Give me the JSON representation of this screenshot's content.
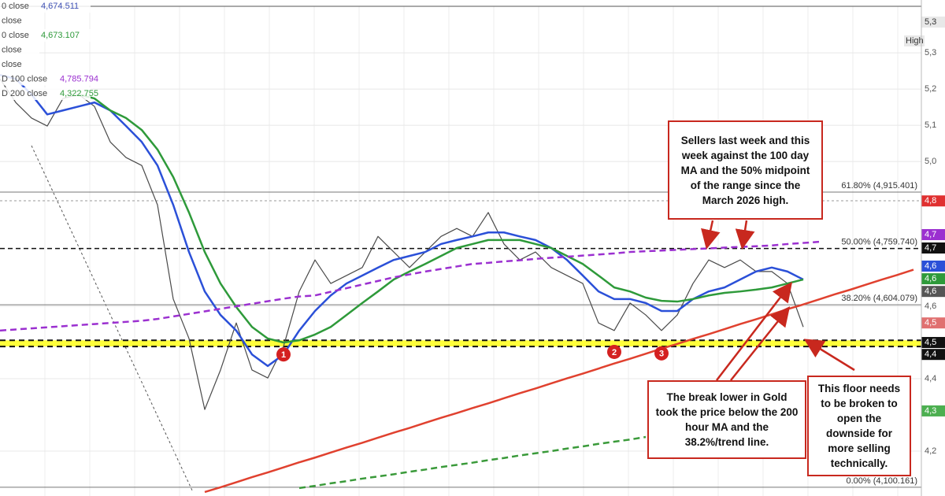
{
  "chart_data": {
    "type": "line",
    "ylim": [
      4076,
      5446
    ],
    "yticks": [
      {
        "value": 4200,
        "label": "4,2"
      },
      {
        "value": 4400,
        "label": "4,4"
      },
      {
        "value": 4600,
        "label": "4,6"
      },
      {
        "value": 5000,
        "label": "5,0"
      },
      {
        "value": 5100,
        "label": "5,1"
      },
      {
        "value": 5200,
        "label": "5,2"
      },
      {
        "value": 5300,
        "label": "5,3"
      }
    ],
    "grid": true,
    "legend": [
      {
        "label": "0 close",
        "readout": {
          "value": 4674.511,
          "label": "4,674.511"
        },
        "color": "#3f51b5"
      },
      {
        "label": "close"
      },
      {
        "label": "0 close",
        "readout": {
          "value": 4673.107,
          "label": "4,673.107"
        },
        "color": "#2e9a3a"
      },
      {
        "label": "close"
      },
      {
        "label": "close"
      },
      {
        "label": "D 100 close",
        "readout": {
          "value": 4785.794,
          "label": "4,785.794"
        },
        "color": "#9b30d0"
      },
      {
        "label": "D 200 close",
        "readout": {
          "value": 4322.755,
          "label": "4,322.755"
        },
        "color": "#2e9a3a"
      }
    ],
    "series": [
      {
        "color": "#4a4a4a",
        "values": [
          5228,
          5163,
          5120,
          5098,
          5174,
          5185,
          5152,
          5054,
          5011,
          4989,
          4880,
          4620,
          4511,
          4315,
          4424,
          4554,
          4424,
          4402,
          4489,
          4641,
          4728,
          4663,
          4685,
          4707,
          4793,
          4750,
          4707,
          4750,
          4793,
          4815,
          4793,
          4859,
          4772,
          4728,
          4750,
          4707,
          4685,
          4663,
          4554,
          4533,
          4609,
          4576,
          4533,
          4576,
          4663,
          4728,
          4707,
          4728,
          4696,
          4696,
          4663,
          4543,
          null,
          null,
          null,
          null,
          null,
          null,
          null
        ]
      },
      {
        "color": "#2b50d8",
        "values": [
          5239,
          5228,
          5185,
          5130,
          5141,
          5152,
          5163,
          5141,
          5098,
          5054,
          4989,
          4880,
          4750,
          4641,
          4576,
          4533,
          4467,
          4435,
          4467,
          4533,
          4587,
          4630,
          4663,
          4685,
          4707,
          4728,
          4739,
          4750,
          4772,
          4783,
          4793,
          4804,
          4804,
          4793,
          4783,
          4761,
          4728,
          4685,
          4641,
          4620,
          4620,
          4609,
          4587,
          4587,
          4620,
          4641,
          4652,
          4674,
          4696,
          4707,
          4696,
          4674,
          null,
          null,
          null,
          null,
          null,
          null,
          null
        ]
      },
      {
        "color": "#2e9a3a",
        "values": [
          null,
          null,
          null,
          null,
          null,
          5185,
          5174,
          5141,
          5120,
          5087,
          5033,
          4957,
          4859,
          4750,
          4663,
          4598,
          4543,
          4511,
          4500,
          4506,
          4522,
          4543,
          4576,
          4609,
          4641,
          4674,
          4696,
          4717,
          4739,
          4761,
          4772,
          4783,
          4783,
          4783,
          4772,
          4761,
          4739,
          4717,
          4685,
          4652,
          4641,
          4624,
          4615,
          4613,
          4620,
          4630,
          4637,
          4641,
          4646,
          4652,
          4663,
          4674,
          null,
          null,
          null,
          null,
          null,
          null,
          null
        ]
      },
      {
        "color": "#9b30d0",
        "dash": true,
        "values": [
          4533,
          4536,
          4539,
          4542,
          4545,
          4548,
          4551,
          4554,
          4557,
          4560,
          4565,
          4572,
          4579,
          4586,
          4593,
          4600,
          4607,
          4614,
          4621,
          4627,
          4630,
          4640,
          4650,
          4660,
          4670,
          4680,
          4688,
          4696,
          4703,
          4710,
          4717,
          4720,
          4724,
          4727,
          4731,
          4734,
          4737,
          4740,
          4743,
          4746,
          4750,
          4752,
          4754,
          4756,
          4758,
          4760,
          4762,
          4764,
          4766,
          4768,
          4772,
          4775,
          4778,
          null,
          null,
          null,
          null,
          null,
          null
        ]
      },
      {
        "color": "#3a9a3a",
        "dash": true,
        "values": [
          null,
          null,
          null,
          null,
          null,
          null,
          null,
          null,
          null,
          null,
          null,
          null,
          null,
          null,
          null,
          null,
          null,
          null,
          null,
          4098,
          4104,
          4111,
          4117,
          4124,
          4130,
          4136,
          4143,
          4149,
          4156,
          4162,
          4168,
          4175,
          4181,
          4188,
          4194,
          4200,
          4207,
          4213,
          4220,
          4226,
          4232,
          4239,
          null,
          null,
          null,
          null,
          null,
          null,
          null,
          null,
          null,
          null,
          null,
          null,
          null,
          null,
          null,
          null,
          null
        ]
      },
      {
        "color": "#e0412f",
        "values": [
          null,
          null,
          null,
          null,
          null,
          null,
          null,
          null,
          null,
          null,
          null,
          null,
          null,
          4087,
          4100,
          4114,
          4128,
          4141,
          4155,
          4169,
          4182,
          4196,
          4210,
          4223,
          4237,
          4251,
          4264,
          4278,
          4292,
          4305,
          4319,
          4332,
          4346,
          4360,
          4373,
          4387,
          4401,
          4414,
          4428,
          4442,
          4455,
          4469,
          4483,
          4496,
          4510,
          4523,
          4537,
          4551,
          4564,
          4578,
          4592,
          4605,
          4619,
          4633,
          4646,
          4660,
          4674,
          4687,
          4701
        ]
      }
    ],
    "levels": [
      {
        "value": 4915.401,
        "label": "61.80% (4,915.401)"
      },
      {
        "value": 4759.74,
        "label": "50.00% (4,759.740)",
        "dash": true
      },
      {
        "value": 4604.079,
        "label": "38.20% (4,604.079)"
      },
      {
        "value": 4100.161,
        "label": "0.00% (4,100.161)"
      }
    ],
    "support_band": [
      4489,
      4506
    ],
    "markers": [
      {
        "label": "1",
        "index": 18,
        "value": 4467
      },
      {
        "label": "2",
        "index": 39,
        "value": 4474
      },
      {
        "label": "3",
        "index": 42,
        "value": 4470
      }
    ],
    "price_tags": [
      {
        "value": 4891,
        "label": "4,8",
        "color": "#e03030"
      },
      {
        "value": 4798,
        "label": "4,7",
        "color": "#9b30d0"
      },
      {
        "value": 4761,
        "label": "4,7",
        "color": "#111111"
      },
      {
        "value": 4711,
        "label": "4,6",
        "color": "#2b50d8"
      },
      {
        "value": 4676,
        "label": "4,6",
        "color": "#2e9a3a"
      },
      {
        "value": 4641,
        "label": "4,6",
        "color": "#555555"
      },
      {
        "value": 4554,
        "label": "4,5",
        "color": "#e07070"
      },
      {
        "value": 4500,
        "label": "4,5",
        "color": "#111111"
      },
      {
        "value": 4467,
        "label": "4,4",
        "color": "#111111"
      },
      {
        "value": 4311,
        "label": "4,3",
        "color": "#4caf50"
      }
    ],
    "top_tag": {
      "value": 5385,
      "label": "5,3"
    },
    "high_label": "High",
    "annotations": [
      "Sellers last week and this week against the 100 day MA and the 50% midpoint of the range since the March 2026 high.",
      "The break lower in Gold took the price below the 200 hour MA and the 38.2%/trend line.",
      "This floor needs to be broken to open the downside for more selling technically."
    ]
  }
}
